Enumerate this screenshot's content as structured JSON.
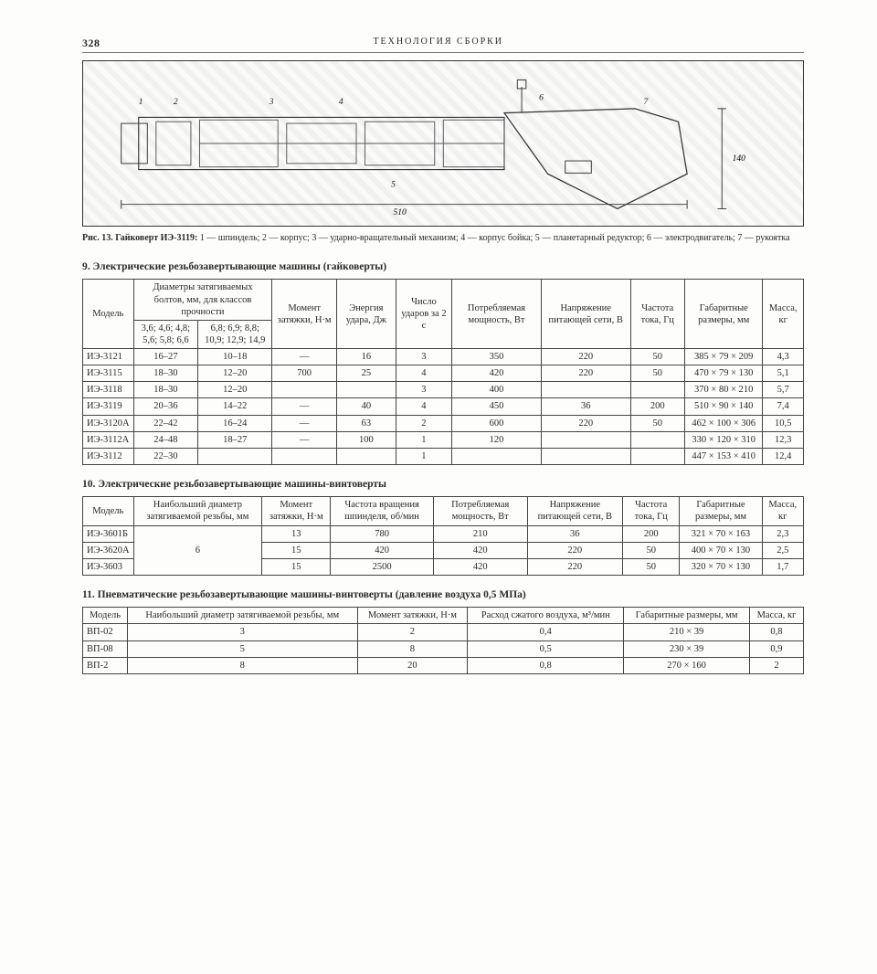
{
  "page_number": "328",
  "running_head": "ТЕХНОЛОГИЯ СБОРКИ",
  "figure": {
    "dim_length": "510",
    "dim_height": "140",
    "labels": [
      "1",
      "2",
      "3",
      "4",
      "5",
      "6",
      "7"
    ],
    "caption_lead": "Рис. 13. Гайковерт ИЭ-3119:",
    "caption_body": " 1 — шпиндель; 2 — корпус; 3 — ударно-вращательный механизм; 4 — корпус бойка; 5 — планетарный редуктор; 6 — электродвигатель; 7 — рукоятка"
  },
  "table9": {
    "title": "9. Электрические резьбозавертывающие машины (гайковерты)",
    "head": {
      "model": "Модель",
      "diam_group": "Диаметры затягиваемых болтов, мм, для классов прочности",
      "diam_sub1": "3,6; 4,6; 4,8; 5,6; 5,8; 6,6",
      "diam_sub2": "6,8; 6,9; 8,8; 10,9; 12,9; 14,9",
      "moment": "Момент затяжки, Н·м",
      "energy": "Энергия удара, Дж",
      "hits": "Число ударов за 2 с",
      "power": "Потребляемая мощность, Вт",
      "voltage": "Напряжение питающей сети, В",
      "freq": "Частота тока, Гц",
      "dims": "Габаритные размеры, мм",
      "mass": "Масса, кг"
    },
    "rows": [
      {
        "m": "ИЭ-3121",
        "d1": "16–27",
        "d2": "10–18",
        "mom": "—",
        "e": "16",
        "h": "3",
        "p": "350",
        "v": "220",
        "f": "50",
        "dim": "385 × 79 × 209",
        "mass": "4,3"
      },
      {
        "m": "ИЭ-3115",
        "d1": "18–30",
        "d2": "12–20",
        "mom": "700",
        "e": "25",
        "h": "4",
        "p": "420",
        "v": "220",
        "f": "50",
        "dim": "470 × 79 × 130",
        "mass": "5,1"
      },
      {
        "m": "ИЭ-3118",
        "d1": "18–30",
        "d2": "12–20",
        "mom": "",
        "e": "",
        "h": "3",
        "p": "400",
        "v": "",
        "f": "",
        "dim": "370 × 80 × 210",
        "mass": "5,7"
      },
      {
        "m": "ИЭ-3119",
        "d1": "20–36",
        "d2": "14–22",
        "mom": "—",
        "e": "40",
        "h": "4",
        "p": "450",
        "v": "36",
        "f": "200",
        "dim": "510 × 90 × 140",
        "mass": "7,4"
      },
      {
        "m": "ИЭ-3120А",
        "d1": "22–42",
        "d2": "16–24",
        "mom": "—",
        "e": "63",
        "h": "2",
        "p": "600",
        "v": "220",
        "f": "50",
        "dim": "462 × 100 × 306",
        "mass": "10,5"
      },
      {
        "m": "ИЭ-3112А",
        "d1": "24–48",
        "d2": "18–27",
        "mom": "—",
        "e": "100",
        "h": "1",
        "p": "120",
        "v": "",
        "f": "",
        "dim": "330 × 120 × 310",
        "mass": "12,3"
      },
      {
        "m": "ИЭ-3112",
        "d1": "22–30",
        "d2": "",
        "mom": "",
        "e": "",
        "h": "1",
        "p": "",
        "v": "",
        "f": "",
        "dim": "447 × 153 × 410",
        "mass": "12,4"
      }
    ]
  },
  "table10": {
    "title": "10. Электрические резьбозавертывающие машины-винтоверты",
    "head": {
      "model": "Модель",
      "diam": "Наибольший диаметр затягиваемой резьбы, мм",
      "moment": "Момент затяжки, Н·м",
      "rpm": "Частота вращения шпинделя, об/мин",
      "power": "Потребляемая мощность, Вт",
      "voltage": "Напряжение питающей сети, В",
      "freq": "Частота тока, Гц",
      "dims": "Габаритные размеры, мм",
      "mass": "Масса, кг"
    },
    "rows": [
      {
        "m": "ИЭ-3601Б",
        "d": "6",
        "mom": "13",
        "r": "780",
        "p": "210",
        "v": "36",
        "f": "200",
        "dim": "321 × 70 × 163",
        "mass": "2,3"
      },
      {
        "m": "ИЭ-3620А",
        "d": "",
        "mom": "15",
        "r": "420",
        "p": "420",
        "v": "220",
        "f": "50",
        "dim": "400 × 70 × 130",
        "mass": "2,5"
      },
      {
        "m": "ИЭ-3603",
        "d": "",
        "mom": "15",
        "r": "2500",
        "p": "420",
        "v": "220",
        "f": "50",
        "dim": "320 × 70 × 130",
        "mass": "1,7"
      }
    ]
  },
  "table11": {
    "title": "11. Пневматические резьбозавертывающие машины-винтоверты (давление воздуха 0,5 МПа)",
    "head": {
      "model": "Модель",
      "diam": "Наибольший диаметр затягиваемой резьбы, мм",
      "moment": "Момент затяжки, Н·м",
      "air": "Расход сжатого воздуха, м³/мин",
      "dims": "Габаритные размеры, мм",
      "mass": "Масса, кг"
    },
    "rows": [
      {
        "m": "ВП-02",
        "d": "3",
        "mom": "2",
        "a": "0,4",
        "dim": "210 × 39",
        "mass": "0,8"
      },
      {
        "m": "ВП-08",
        "d": "5",
        "mom": "8",
        "a": "0,5",
        "dim": "230 × 39",
        "mass": "0,9"
      },
      {
        "m": "ВП-2",
        "d": "8",
        "mom": "20",
        "a": "0,8",
        "dim": "270 × 160",
        "mass": "2"
      }
    ]
  }
}
